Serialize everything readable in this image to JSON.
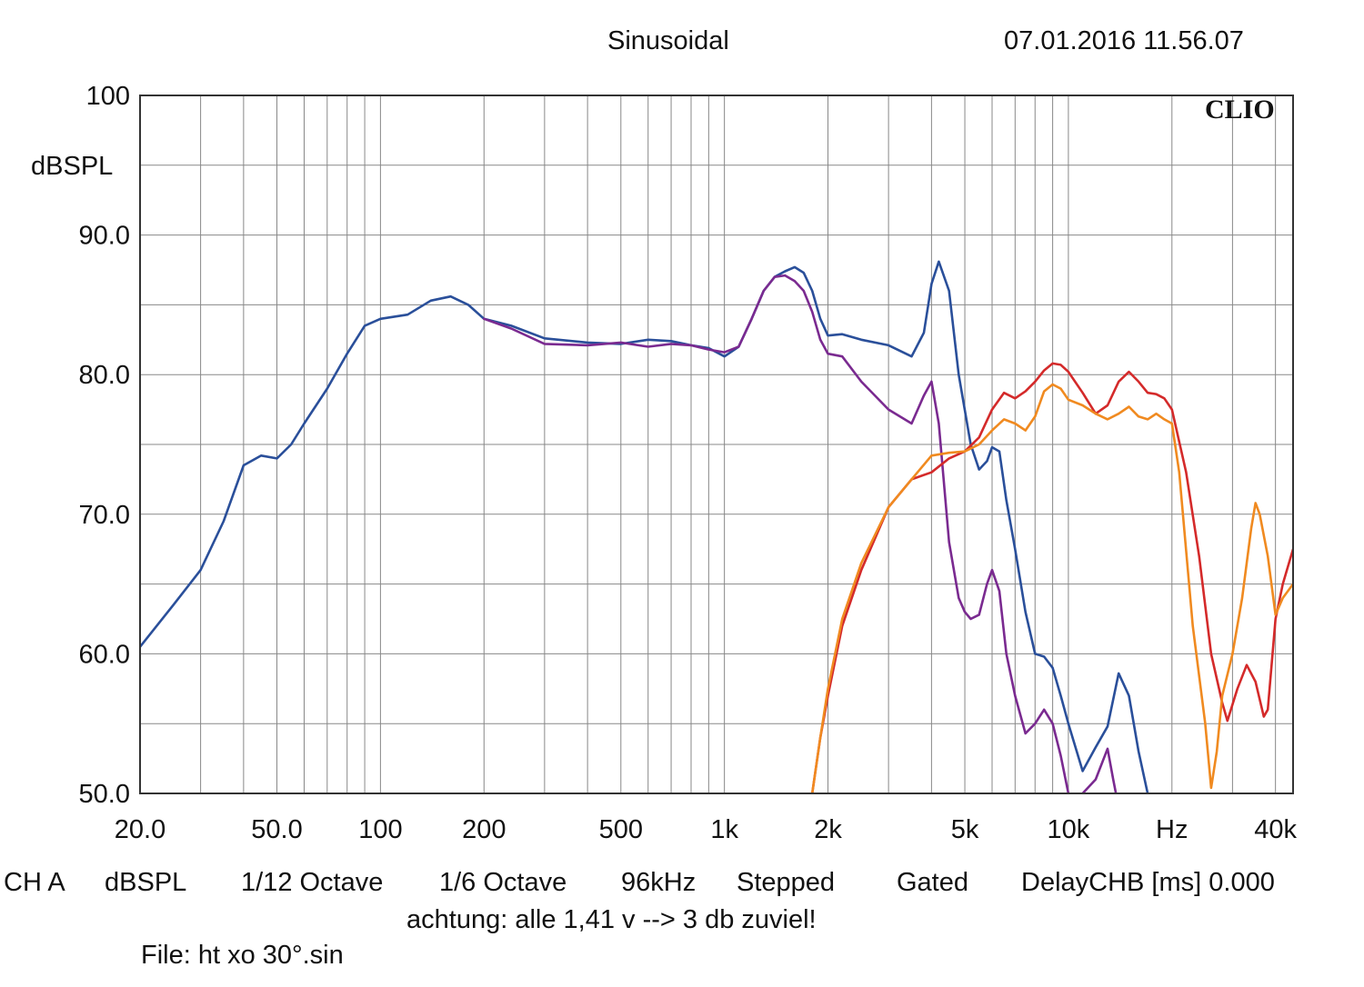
{
  "header": {
    "title": "Sinusoidal",
    "timestamp": "07.01.2016 11.56.07",
    "brand": "CLIO"
  },
  "footer": {
    "items": [
      "CH A",
      "dBSPL",
      "1/12 Octave",
      "1/6 Octave",
      "96kHz",
      "Stepped",
      "Gated",
      "DelayCHB [ms] 0.000"
    ],
    "note": "achtung: alle 1,41 v --> 3 db zuviel!",
    "file": "File: ht xo 30°.sin"
  },
  "chart_data": {
    "type": "line",
    "x_scale": "log",
    "xlim": [
      20,
      45000
    ],
    "ylim": [
      50,
      100
    ],
    "ylabel": "dBSPL",
    "grid": true,
    "x_ticks": [
      {
        "value": 20,
        "label": "20.0"
      },
      {
        "value": 50,
        "label": "50.0"
      },
      {
        "value": 100,
        "label": "100"
      },
      {
        "value": 200,
        "label": "200"
      },
      {
        "value": 500,
        "label": "500"
      },
      {
        "value": 1000,
        "label": "1k"
      },
      {
        "value": 2000,
        "label": "2k"
      },
      {
        "value": 5000,
        "label": "5k"
      },
      {
        "value": 10000,
        "label": "10k"
      },
      {
        "value": 20000,
        "label": "Hz"
      },
      {
        "value": 40000,
        "label": "40k"
      }
    ],
    "y_ticks": [
      {
        "value": 100,
        "label": "100"
      },
      {
        "value": 90,
        "label": "90.0"
      },
      {
        "value": 80,
        "label": "80.0"
      },
      {
        "value": 70,
        "label": "70.0"
      },
      {
        "value": 60,
        "label": "60.0"
      },
      {
        "value": 50,
        "label": "50.0"
      }
    ],
    "series": [
      {
        "color": "#2a4f9a",
        "x": [
          20,
          25,
          30,
          35,
          40,
          45,
          50,
          55,
          60,
          70,
          80,
          90,
          100,
          120,
          140,
          160,
          180,
          200,
          240,
          300,
          400,
          500,
          600,
          700,
          800,
          900,
          1000,
          1100,
          1200,
          1300,
          1400,
          1500,
          1600,
          1700,
          1800,
          1900,
          2000,
          2200,
          2500,
          3000,
          3500,
          3800,
          4000,
          4200,
          4500,
          4800,
          5200,
          5500,
          5800,
          6000,
          6300,
          6600,
          7000,
          7500,
          8000,
          8500,
          9000,
          9500,
          10000,
          11000,
          12000,
          13000,
          14000,
          15000,
          16000,
          17000
        ],
        "y": [
          60.5,
          63.5,
          66,
          69.5,
          73.5,
          74.2,
          74,
          75,
          76.5,
          79,
          81.5,
          83.5,
          84,
          84.3,
          85.3,
          85.6,
          85,
          84,
          83.5,
          82.6,
          82.3,
          82.2,
          82.5,
          82.4,
          82.1,
          81.9,
          81.3,
          82,
          84,
          86,
          87,
          87.4,
          87.7,
          87.3,
          86,
          84,
          82.8,
          82.9,
          82.5,
          82.1,
          81.3,
          83,
          86.5,
          88.1,
          86,
          80,
          75,
          73.2,
          73.8,
          74.8,
          74.5,
          71,
          67.5,
          63,
          60,
          59.8,
          59,
          57,
          55,
          51.6,
          53.3,
          54.8,
          58.6,
          57,
          53,
          50
        ]
      },
      {
        "color": "#7a2a90",
        "x": [
          200,
          240,
          300,
          400,
          500,
          600,
          700,
          800,
          900,
          1000,
          1100,
          1200,
          1300,
          1400,
          1500,
          1600,
          1700,
          1800,
          1900,
          2000,
          2200,
          2500,
          3000,
          3500,
          3800,
          4000,
          4200,
          4500,
          4800,
          5000,
          5200,
          5500,
          5800,
          6000,
          6300,
          6600,
          7000,
          7500,
          8000,
          8500,
          9000,
          9500,
          10000,
          10500,
          11000,
          12000,
          13000,
          13500,
          14000
        ],
        "y": [
          84,
          83.3,
          82.2,
          82.1,
          82.3,
          82,
          82.2,
          82.1,
          81.8,
          81.6,
          82,
          84,
          86,
          87,
          87.1,
          86.7,
          86,
          84.5,
          82.5,
          81.5,
          81.3,
          79.5,
          77.5,
          76.5,
          78.5,
          79.5,
          76.5,
          68,
          64,
          63,
          62.5,
          62.8,
          65,
          66,
          64.5,
          60,
          57,
          54.3,
          55,
          56,
          55,
          52.7,
          50,
          47,
          50,
          51,
          53.2,
          51,
          49
        ]
      },
      {
        "color": "#d42a2a",
        "x": [
          1800,
          1900,
          2000,
          2200,
          2500,
          3000,
          3500,
          4000,
          4500,
          5000,
          5500,
          6000,
          6500,
          7000,
          7500,
          8000,
          8500,
          9000,
          9500,
          10000,
          11000,
          12000,
          13000,
          14000,
          15000,
          16000,
          17000,
          18000,
          19000,
          20000,
          22000,
          24000,
          26000,
          28000,
          29000,
          31000,
          33000,
          35000,
          37000,
          38000,
          40000,
          42000,
          45000
        ],
        "y": [
          50,
          54,
          57,
          62,
          66,
          70.5,
          72.5,
          73,
          74,
          74.5,
          75.5,
          77.5,
          78.7,
          78.3,
          78.8,
          79.5,
          80.3,
          80.8,
          80.7,
          80.2,
          78.7,
          77.2,
          77.8,
          79.5,
          80.2,
          79.5,
          78.7,
          78.6,
          78.3,
          77.5,
          73,
          67,
          60,
          56.5,
          55.2,
          57.5,
          59.2,
          58,
          55.5,
          56,
          62.5,
          65,
          67.5
        ]
      },
      {
        "color": "#f08a20",
        "x": [
          1800,
          1900,
          2000,
          2200,
          2500,
          3000,
          3500,
          4000,
          4500,
          5000,
          5500,
          6000,
          6500,
          7000,
          7500,
          8000,
          8500,
          9000,
          9500,
          10000,
          11000,
          12000,
          13000,
          14000,
          15000,
          16000,
          17000,
          18000,
          19000,
          20000,
          21000,
          23000,
          25000,
          26000,
          27000,
          28000,
          30000,
          32000,
          34000,
          35000,
          36000,
          38000,
          40000,
          42000,
          45000
        ],
        "y": [
          50,
          54,
          57.5,
          62.5,
          66.5,
          70.5,
          72.5,
          74.2,
          74.4,
          74.5,
          75,
          76,
          76.8,
          76.5,
          76,
          77,
          78.8,
          79.3,
          79,
          78.2,
          77.8,
          77.2,
          76.8,
          77.2,
          77.7,
          77,
          76.8,
          77.2,
          76.8,
          76.5,
          73,
          62,
          55,
          50.4,
          53,
          57,
          60,
          64,
          69,
          70.8,
          70,
          67,
          62.8,
          64,
          65
        ]
      }
    ]
  }
}
